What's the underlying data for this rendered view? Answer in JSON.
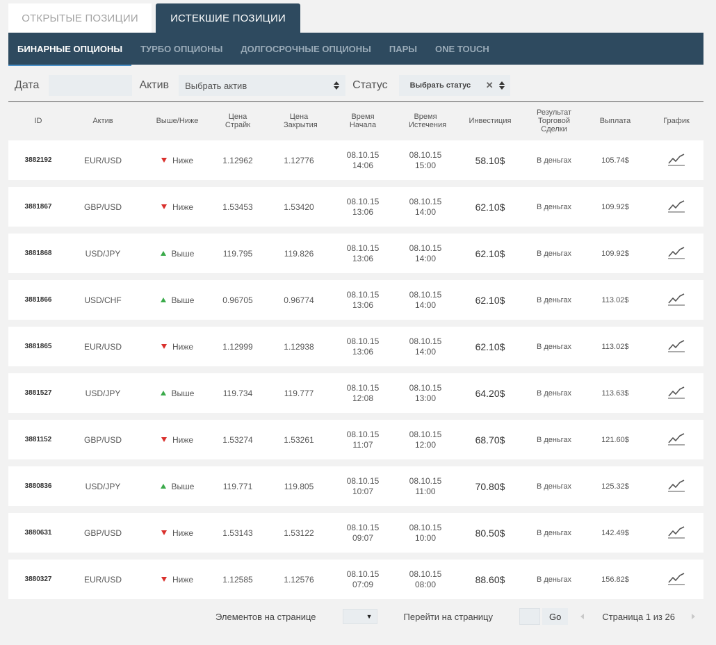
{
  "top_tabs": [
    {
      "label": "ОТКРЫТЫЕ ПОЗИЦИИ",
      "active": false
    },
    {
      "label": "ИСТЕКШИЕ ПОЗИЦИИ",
      "active": true
    }
  ],
  "sub_tabs": [
    {
      "label": "БИНАРНЫЕ ОПЦИОНЫ",
      "active": true
    },
    {
      "label": "ТУРБО ОПЦИОНЫ",
      "active": false
    },
    {
      "label": "ДОЛГОСРОЧНЫЕ ОПЦИОНЫ",
      "active": false
    },
    {
      "label": "ПАРЫ",
      "active": false
    },
    {
      "label": "ONE TOUCH",
      "active": false
    }
  ],
  "filters": {
    "date_label": "Дата",
    "date_value": "",
    "asset_label": "Актив",
    "asset_value": "Выбрать актив",
    "status_label": "Статус",
    "status_value": "Выбрать статус",
    "clear_icon": "close-icon"
  },
  "columns": {
    "id": "ID",
    "asset": "Актив",
    "direction": "Выше/Ниже",
    "strike": "Цена Страйк",
    "close": "Цена Закрытия",
    "start": "Время Начала",
    "expiry": "Время Истечения",
    "investment": "Инвестиция",
    "result": "Результат Торговой Сделки",
    "payout": "Выплата",
    "chart": "График"
  },
  "rows": [
    {
      "id": "3882192",
      "asset": "EUR/USD",
      "direction": "Ниже",
      "dir": "down",
      "strike": "1.12962",
      "close": "1.12776",
      "start_date": "08.10.15",
      "start_time": "14:06",
      "exp_date": "08.10.15",
      "exp_time": "15:00",
      "investment": "58.10$",
      "result": "В деньгах",
      "payout": "105.74$"
    },
    {
      "id": "3881867",
      "asset": "GBP/USD",
      "direction": "Ниже",
      "dir": "down",
      "strike": "1.53453",
      "close": "1.53420",
      "start_date": "08.10.15",
      "start_time": "13:06",
      "exp_date": "08.10.15",
      "exp_time": "14:00",
      "investment": "62.10$",
      "result": "В деньгах",
      "payout": "109.92$"
    },
    {
      "id": "3881868",
      "asset": "USD/JPY",
      "direction": "Выше",
      "dir": "up",
      "strike": "119.795",
      "close": "119.826",
      "start_date": "08.10.15",
      "start_time": "13:06",
      "exp_date": "08.10.15",
      "exp_time": "14:00",
      "investment": "62.10$",
      "result": "В деньгах",
      "payout": "109.92$"
    },
    {
      "id": "3881866",
      "asset": "USD/CHF",
      "direction": "Выше",
      "dir": "up",
      "strike": "0.96705",
      "close": "0.96774",
      "start_date": "08.10.15",
      "start_time": "13:06",
      "exp_date": "08.10.15",
      "exp_time": "14:00",
      "investment": "62.10$",
      "result": "В деньгах",
      "payout": "113.02$"
    },
    {
      "id": "3881865",
      "asset": "EUR/USD",
      "direction": "Ниже",
      "dir": "down",
      "strike": "1.12999",
      "close": "1.12938",
      "start_date": "08.10.15",
      "start_time": "13:06",
      "exp_date": "08.10.15",
      "exp_time": "14:00",
      "investment": "62.10$",
      "result": "В деньгах",
      "payout": "113.02$"
    },
    {
      "id": "3881527",
      "asset": "USD/JPY",
      "direction": "Выше",
      "dir": "up",
      "strike": "119.734",
      "close": "119.777",
      "start_date": "08.10.15",
      "start_time": "12:08",
      "exp_date": "08.10.15",
      "exp_time": "13:00",
      "investment": "64.20$",
      "result": "В деньгах",
      "payout": "113.63$"
    },
    {
      "id": "3881152",
      "asset": "GBP/USD",
      "direction": "Ниже",
      "dir": "down",
      "strike": "1.53274",
      "close": "1.53261",
      "start_date": "08.10.15",
      "start_time": "11:07",
      "exp_date": "08.10.15",
      "exp_time": "12:00",
      "investment": "68.70$",
      "result": "В деньгах",
      "payout": "121.60$"
    },
    {
      "id": "3880836",
      "asset": "USD/JPY",
      "direction": "Выше",
      "dir": "up",
      "strike": "119.771",
      "close": "119.805",
      "start_date": "08.10.15",
      "start_time": "10:07",
      "exp_date": "08.10.15",
      "exp_time": "11:00",
      "investment": "70.80$",
      "result": "В деньгах",
      "payout": "125.32$"
    },
    {
      "id": "3880631",
      "asset": "GBP/USD",
      "direction": "Ниже",
      "dir": "down",
      "strike": "1.53143",
      "close": "1.53122",
      "start_date": "08.10.15",
      "start_time": "09:07",
      "exp_date": "08.10.15",
      "exp_time": "10:00",
      "investment": "80.50$",
      "result": "В деньгах",
      "payout": "142.49$"
    },
    {
      "id": "3880327",
      "asset": "EUR/USD",
      "direction": "Ниже",
      "dir": "down",
      "strike": "1.12585",
      "close": "1.12576",
      "start_date": "08.10.15",
      "start_time": "07:09",
      "exp_date": "08.10.15",
      "exp_time": "08:00",
      "investment": "88.60$",
      "result": "В деньгах",
      "payout": "156.82$"
    }
  ],
  "pagination": {
    "per_page_label": "Элементов на странице",
    "per_page_value": "",
    "goto_label": "Перейти на страницу",
    "goto_value": "",
    "go_label": "Go",
    "page_info": "Страница 1 из 26"
  },
  "colors": {
    "nav_bg": "#2e4a5f",
    "down": "#d9302c",
    "up": "#3aaa4a",
    "page_bg": "#f2f2f2"
  }
}
